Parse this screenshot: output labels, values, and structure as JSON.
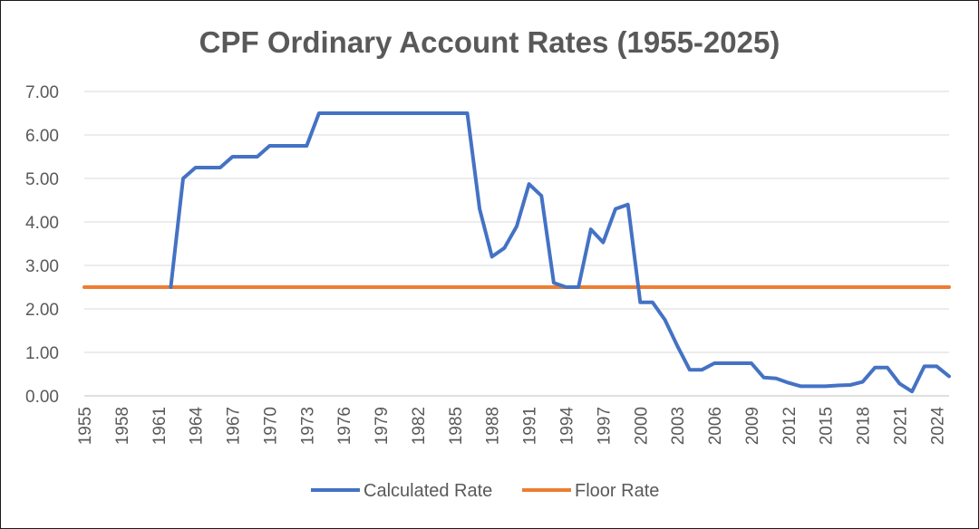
{
  "chart_data": {
    "type": "line",
    "title": "CPF Ordinary Account Rates (1955-2025)",
    "xlabel": "",
    "ylabel": "",
    "x": [
      1955,
      1956,
      1957,
      1958,
      1959,
      1960,
      1961,
      1962,
      1963,
      1964,
      1965,
      1966,
      1967,
      1968,
      1969,
      1970,
      1971,
      1972,
      1973,
      1974,
      1975,
      1976,
      1977,
      1978,
      1979,
      1980,
      1981,
      1982,
      1983,
      1984,
      1985,
      1986,
      1987,
      1988,
      1989,
      1990,
      1991,
      1992,
      1993,
      1994,
      1995,
      1996,
      1997,
      1998,
      1999,
      2000,
      2001,
      2002,
      2003,
      2004,
      2005,
      2006,
      2007,
      2008,
      2009,
      2010,
      2011,
      2012,
      2013,
      2014,
      2015,
      2016,
      2017,
      2018,
      2019,
      2020,
      2021,
      2022,
      2023,
      2024,
      2025
    ],
    "x_tick_labels": [
      "1955",
      "1958",
      "1961",
      "1964",
      "1967",
      "1970",
      "1973",
      "1976",
      "1979",
      "1982",
      "1985",
      "1988",
      "1991",
      "1994",
      "1997",
      "2000",
      "2003",
      "2006",
      "2009",
      "2012",
      "2015",
      "2018",
      "2021",
      "2024"
    ],
    "y_tick_labels": [
      "0.00",
      "1.00",
      "2.00",
      "3.00",
      "4.00",
      "5.00",
      "6.00",
      "7.00"
    ],
    "ylim": [
      0,
      7
    ],
    "grid": "horizontal",
    "legend_position": "bottom",
    "series": [
      {
        "name": "Calculated Rate",
        "color": "#4472C4",
        "values": [
          null,
          null,
          null,
          null,
          null,
          null,
          null,
          2.5,
          5.0,
          5.25,
          5.25,
          5.25,
          5.5,
          5.5,
          5.5,
          5.75,
          5.75,
          5.75,
          5.75,
          6.5,
          6.5,
          6.5,
          6.5,
          6.5,
          6.5,
          6.5,
          6.5,
          6.5,
          6.5,
          6.5,
          6.5,
          6.5,
          4.3,
          3.2,
          3.4,
          3.9,
          4.87,
          4.6,
          2.6,
          2.5,
          2.5,
          3.83,
          3.53,
          4.3,
          4.4,
          2.15,
          2.15,
          1.75,
          1.15,
          0.6,
          0.6,
          0.75,
          0.75,
          0.75,
          0.75,
          0.42,
          0.4,
          0.3,
          0.22,
          0.22,
          0.22,
          0.24,
          0.25,
          0.32,
          0.65,
          0.65,
          0.28,
          0.1,
          0.68,
          0.68,
          0.45
        ]
      },
      {
        "name": "Floor Rate",
        "color": "#ED7D31",
        "values": [
          2.5,
          2.5,
          2.5,
          2.5,
          2.5,
          2.5,
          2.5,
          2.5,
          2.5,
          2.5,
          2.5,
          2.5,
          2.5,
          2.5,
          2.5,
          2.5,
          2.5,
          2.5,
          2.5,
          2.5,
          2.5,
          2.5,
          2.5,
          2.5,
          2.5,
          2.5,
          2.5,
          2.5,
          2.5,
          2.5,
          2.5,
          2.5,
          2.5,
          2.5,
          2.5,
          2.5,
          2.5,
          2.5,
          2.5,
          2.5,
          2.5,
          2.5,
          2.5,
          2.5,
          2.5,
          2.5,
          2.5,
          2.5,
          2.5,
          2.5,
          2.5,
          2.5,
          2.5,
          2.5,
          2.5,
          2.5,
          2.5,
          2.5,
          2.5,
          2.5,
          2.5,
          2.5,
          2.5,
          2.5,
          2.5,
          2.5,
          2.5,
          2.5,
          2.5,
          2.5,
          2.5
        ]
      }
    ]
  }
}
